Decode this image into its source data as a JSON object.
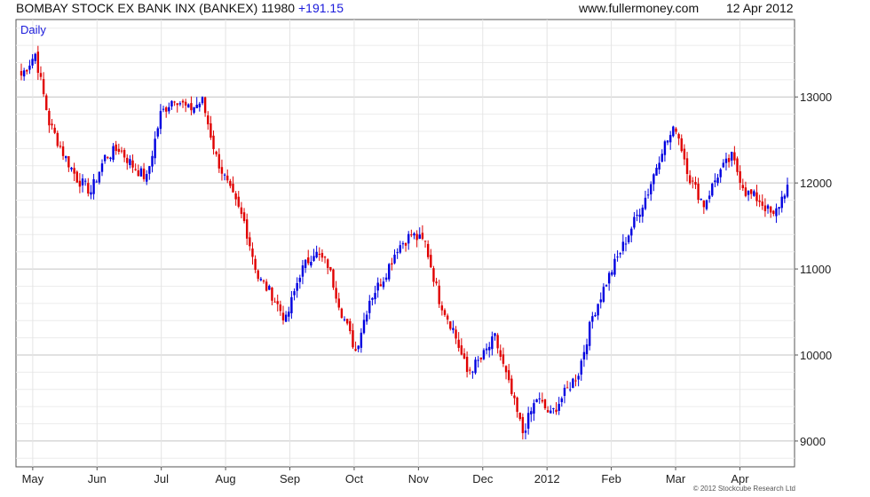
{
  "header": {
    "title": "BOMBAY STOCK EX BANK INX (BANKEX)",
    "last": "11980",
    "change": "+191.15",
    "website": "www.fullermoney.com",
    "date": "12 Apr 2012"
  },
  "period_label": "Daily",
  "copyright": "© 2012 Stockcube Research Ltd",
  "colors": {
    "up": "#0000e0",
    "down": "#e00000",
    "grid": "#dcdcdc",
    "axis": "#555555"
  },
  "chart_data": {
    "type": "candlestick-ohlc",
    "title": "BOMBAY STOCK EX BANK INX (BANKEX)",
    "ylim": [
      8700,
      13900
    ],
    "y_ticks": [
      "9000",
      "10000",
      "11000",
      "12000",
      "13000"
    ],
    "x_month_labels": [
      "May",
      "Jun",
      "Jul",
      "Aug",
      "Sep",
      "Oct",
      "Nov",
      "Dec",
      "2012",
      "Feb",
      "Mar",
      "Apr"
    ],
    "grid": true,
    "weekly_closes": [
      13250,
      13500,
      12700,
      12350,
      12050,
      11900,
      12300,
      12400,
      12200,
      12050,
      12800,
      13000,
      12850,
      12950,
      12300,
      11900,
      11550,
      10900,
      10700,
      10400,
      10950,
      11200,
      11050,
      10500,
      10050,
      10650,
      10900,
      11250,
      11400,
      11300,
      10650,
      10300,
      9800,
      9950,
      10200,
      9650,
      9100,
      9500,
      9300,
      9550,
      9800,
      10450,
      10850,
      11200,
      11550,
      11900,
      12400,
      12650,
      12050,
      11750,
      12100,
      12300,
      11900,
      11800,
      11600,
      11980
    ]
  }
}
